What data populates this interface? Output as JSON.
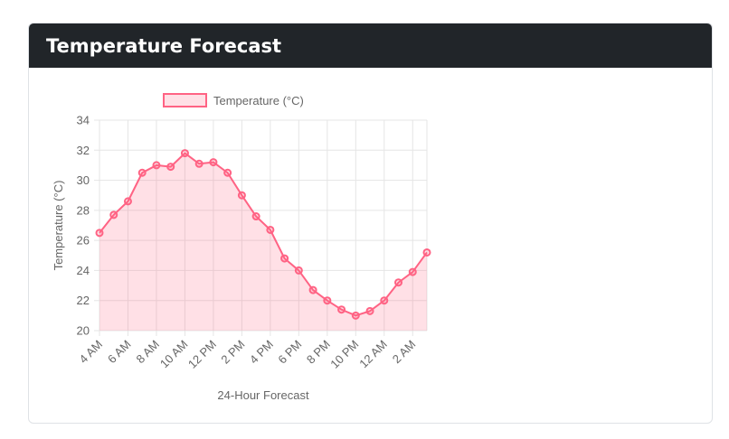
{
  "card": {
    "title": "Temperature Forecast"
  },
  "colors": {
    "header_bg": "#212529",
    "line": "#ff6384",
    "fill": "rgba(255,99,132,0.2)",
    "grid": "#e5e5e5",
    "text": "#666666"
  },
  "chart_data": {
    "type": "line",
    "title": "",
    "xlabel": "24-Hour Forecast",
    "ylabel": "Temperature (°C)",
    "ylim": [
      20,
      34
    ],
    "yticks": [
      20,
      22,
      24,
      26,
      28,
      30,
      32,
      34
    ],
    "legend": {
      "label": "Temperature (°C)",
      "position": "top"
    },
    "fill": true,
    "categories": [
      "4 AM",
      "5 AM",
      "6 AM",
      "7 AM",
      "8 AM",
      "9 AM",
      "10 AM",
      "11 AM",
      "12 PM",
      "1 PM",
      "2 PM",
      "3 PM",
      "4 PM",
      "5 PM",
      "6 PM",
      "7 PM",
      "8 PM",
      "9 PM",
      "10 PM",
      "11 PM",
      "12 AM",
      "1 AM",
      "2 AM",
      "3 AM"
    ],
    "tick_labels": [
      "4 AM",
      "6 AM",
      "8 AM",
      "10 AM",
      "12 PM",
      "2 PM",
      "4 PM",
      "6 PM",
      "8 PM",
      "10 PM",
      "12 AM",
      "2 AM"
    ],
    "series": [
      {
        "name": "Temperature (°C)",
        "values": [
          26.5,
          27.7,
          28.6,
          30.5,
          31.0,
          30.9,
          31.8,
          31.1,
          31.2,
          30.5,
          29.0,
          27.6,
          26.7,
          24.8,
          24.0,
          22.7,
          22.0,
          21.4,
          21.0,
          21.3,
          22.0,
          23.2,
          23.9,
          25.2
        ]
      }
    ]
  }
}
